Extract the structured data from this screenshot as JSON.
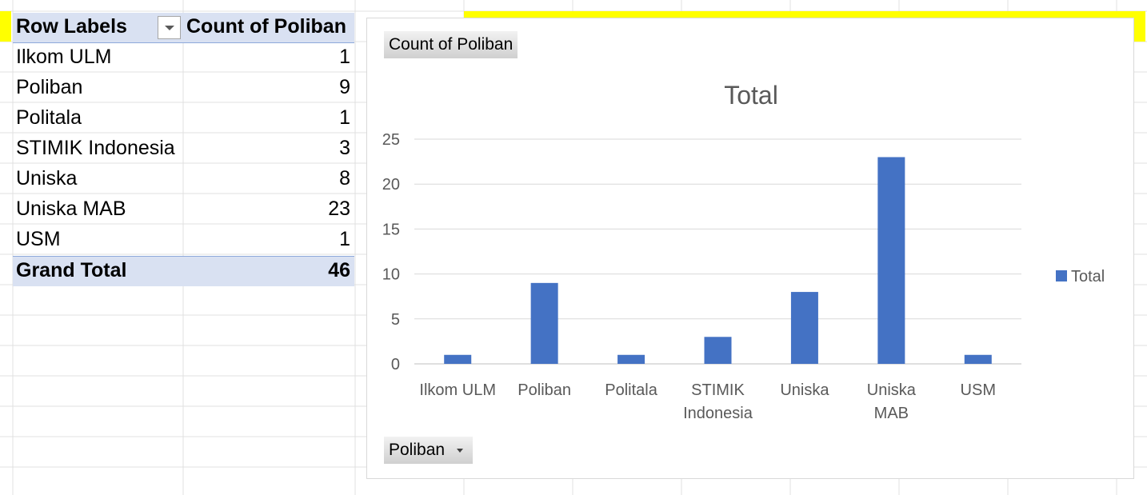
{
  "pivot": {
    "header_label": "Row Labels",
    "header_value": "Count of Poliban",
    "rows": [
      {
        "label": "Ilkom ULM",
        "value": "1"
      },
      {
        "label": "Poliban",
        "value": "9"
      },
      {
        "label": "Politala",
        "value": "1"
      },
      {
        "label": "STIMIK Indonesia",
        "value": "3"
      },
      {
        "label": "Uniska",
        "value": "8"
      },
      {
        "label": "Uniska MAB",
        "value": "23"
      },
      {
        "label": "USM",
        "value": "1"
      }
    ],
    "total_label": "Grand Total",
    "total_value": "46",
    "header_color": "#d9e1f2"
  },
  "chart_buttons": {
    "value_field": "Count of Poliban",
    "axis_field": "Poliban"
  },
  "chart_data": {
    "type": "bar",
    "title": "Total",
    "categories": [
      "Ilkom ULM",
      "Poliban",
      "Politala",
      "STIMIK Indonesia",
      "Uniska",
      "Uniska MAB",
      "USM"
    ],
    "category_lines": [
      [
        "Ilkom ULM"
      ],
      [
        "Poliban"
      ],
      [
        "Politala"
      ],
      [
        "STIMIK",
        "Indonesia"
      ],
      [
        "Uniska"
      ],
      [
        "Uniska",
        "MAB"
      ],
      [
        "USM"
      ]
    ],
    "series": [
      {
        "name": "Total",
        "values": [
          1,
          9,
          1,
          3,
          8,
          23,
          1
        ]
      }
    ],
    "ylim": [
      0,
      25
    ],
    "yticks": [
      0,
      5,
      10,
      15,
      20,
      25
    ],
    "xlabel": "",
    "ylabel": "",
    "grid": true,
    "legend": "right",
    "bar_color": "#4472c4"
  },
  "colors": {
    "highlight": "#ffff00",
    "bar": "#4472c4"
  }
}
